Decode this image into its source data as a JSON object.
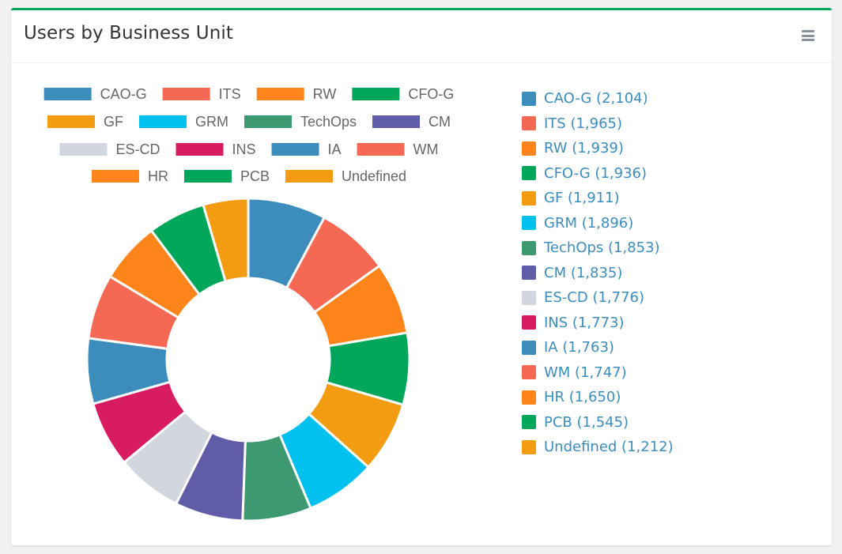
{
  "card": {
    "title": "Users by Business Unit"
  },
  "chart_data": {
    "type": "pie",
    "donut": true,
    "legend_position": "top",
    "categories": [
      "CAO-G",
      "ITS",
      "RW",
      "CFO-G",
      "GF",
      "GRM",
      "TechOps",
      "CM",
      "ES-CD",
      "INS",
      "IA",
      "WM",
      "HR",
      "PCB",
      "Undefined"
    ],
    "values": [
      2104,
      1965,
      1939,
      1936,
      1911,
      1896,
      1853,
      1835,
      1776,
      1773,
      1763,
      1747,
      1650,
      1545,
      1212
    ],
    "colors": [
      "#3c8dbc",
      "#f56954",
      "#ff851b",
      "#00a65a",
      "#f39c12",
      "#00c0ef",
      "#3d9970",
      "#605ca8",
      "#d2d6de",
      "#d81b60",
      "#3c8dbc",
      "#f56954",
      "#ff851b",
      "#00a65a",
      "#f39c12"
    ]
  },
  "side_legend": [
    {
      "label": "CAO-G (2,104)"
    },
    {
      "label": "ITS (1,965)"
    },
    {
      "label": "RW (1,939)"
    },
    {
      "label": "CFO-G (1,936)"
    },
    {
      "label": "GF (1,911)"
    },
    {
      "label": "GRM (1,896)"
    },
    {
      "label": "TechOps (1,853)"
    },
    {
      "label": "CM (1,835)"
    },
    {
      "label": "ES-CD (1,776)"
    },
    {
      "label": "INS (1,773)"
    },
    {
      "label": "IA (1,763)"
    },
    {
      "label": "WM (1,747)"
    },
    {
      "label": "HR (1,650)"
    },
    {
      "label": "PCB (1,545)"
    },
    {
      "label": "Undefined (1,212)"
    }
  ]
}
